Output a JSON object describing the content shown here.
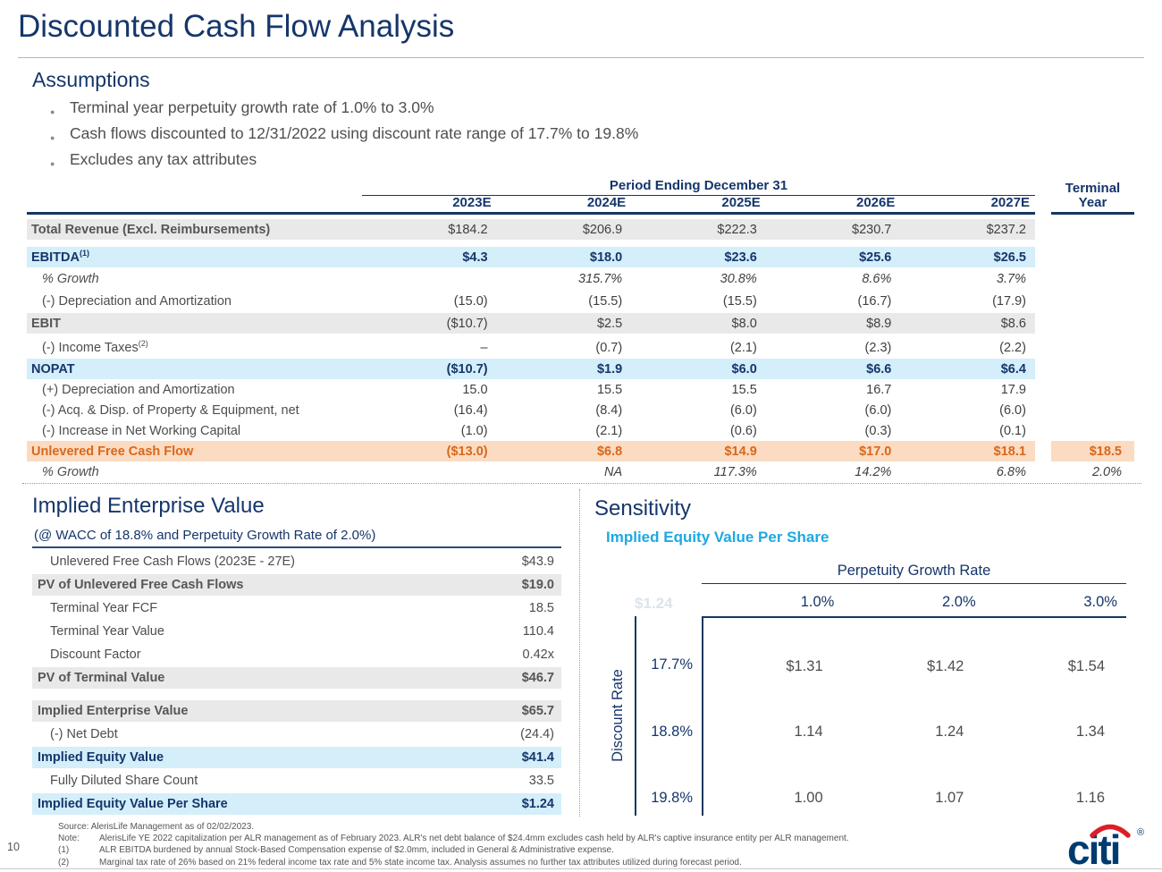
{
  "slide": {
    "title": "Discounted Cash Flow Analysis",
    "page_number": "10",
    "logo_text": "citi"
  },
  "assumptions": {
    "heading": "Assumptions",
    "bullets": [
      "Terminal year perpetuity growth rate of 1.0% to 3.0%",
      "Cash flows discounted to 12/31/2022 using discount rate range of 17.7% to 19.8%",
      "Excludes any tax attributes"
    ]
  },
  "dcf_table": {
    "group_header": "Period Ending December 31",
    "terminal_header_line1": "Terminal",
    "terminal_header_line2": "Year",
    "columns": [
      "2023E",
      "2024E",
      "2025E",
      "2026E",
      "2027E"
    ],
    "rows": [
      {
        "label": "Total Revenue (Excl. Reimbursements)",
        "sup": "",
        "style": "grey",
        "values": [
          "$184.2",
          "$206.9",
          "$222.3",
          "$230.7",
          "$237.2"
        ],
        "terminal": ""
      },
      {
        "label": "EBITDA",
        "sup": "(1)",
        "style": "blue",
        "values": [
          "$4.3",
          "$18.0",
          "$23.6",
          "$25.6",
          "$26.5"
        ],
        "terminal": ""
      },
      {
        "label": "% Growth",
        "sup": "",
        "style": "growth",
        "values": [
          "",
          "315.7%",
          "30.8%",
          "8.6%",
          "3.7%"
        ],
        "terminal": ""
      },
      {
        "label": "(-) Depreciation and Amortization",
        "sup": "",
        "style": "indent",
        "values": [
          "(15.0)",
          "(15.5)",
          "(15.5)",
          "(16.7)",
          "(17.9)"
        ],
        "terminal": ""
      },
      {
        "label": "EBIT",
        "sup": "",
        "style": "grey",
        "values": [
          "($10.7)",
          "$2.5",
          "$8.0",
          "$8.9",
          "$8.6"
        ],
        "terminal": ""
      },
      {
        "label": "(-) Income Taxes",
        "sup": "(2)",
        "style": "indent",
        "values": [
          "–",
          "(0.7)",
          "(2.1)",
          "(2.3)",
          "(2.2)"
        ],
        "terminal": ""
      },
      {
        "label": "NOPAT",
        "sup": "",
        "style": "blue",
        "values": [
          "($10.7)",
          "$1.9",
          "$6.0",
          "$6.6",
          "$6.4"
        ],
        "terminal": ""
      },
      {
        "label": "(+) Depreciation and Amortization",
        "sup": "",
        "style": "indent",
        "values": [
          "15.0",
          "15.5",
          "15.5",
          "16.7",
          "17.9"
        ],
        "terminal": ""
      },
      {
        "label": "(-) Acq. & Disp. of Property & Equipment, net",
        "sup": "",
        "style": "indent",
        "values": [
          "(16.4)",
          "(8.4)",
          "(6.0)",
          "(6.0)",
          "(6.0)"
        ],
        "terminal": ""
      },
      {
        "label": "(-) Increase in Net Working Capital",
        "sup": "",
        "style": "indent",
        "values": [
          "(1.0)",
          "(2.1)",
          "(0.6)",
          "(0.3)",
          "(0.1)"
        ],
        "terminal": ""
      },
      {
        "label": "Unlevered Free Cash Flow",
        "sup": "",
        "style": "peach",
        "values": [
          "($13.0)",
          "$6.8",
          "$14.9",
          "$17.0",
          "$18.1"
        ],
        "terminal": "$18.5"
      },
      {
        "label": "% Growth",
        "sup": "",
        "style": "growth",
        "values": [
          "",
          "NA",
          "117.3%",
          "14.2%",
          "6.8%"
        ],
        "terminal": "2.0%"
      }
    ]
  },
  "implied_ev": {
    "heading": "Implied Enterprise Value",
    "subtitle": "(@ WACC of 18.8% and Perpetuity Growth Rate of 2.0%)",
    "rows": [
      {
        "label": "Unlevered Free Cash Flows (2023E - 27E)",
        "value": "$43.9",
        "style": "indent"
      },
      {
        "label": "PV of Unlevered Free Cash Flows",
        "value": "$19.0",
        "style": "grey"
      },
      {
        "label": "Terminal Year FCF",
        "value": "18.5",
        "style": "indent"
      },
      {
        "label": "Terminal Year Value",
        "value": "110.4",
        "style": "indent"
      },
      {
        "label": "Discount Factor",
        "value": "0.42x",
        "style": "indent"
      },
      {
        "label": "PV of Terminal Value",
        "value": "$46.7",
        "style": "grey"
      },
      {
        "label": "",
        "value": "",
        "style": "spacer"
      },
      {
        "label": "Implied Enterprise Value",
        "value": "$65.7",
        "style": "grey"
      },
      {
        "label": "(-) Net Debt",
        "value": "(24.4)",
        "style": "indent"
      },
      {
        "label": "Implied Equity Value",
        "value": "$41.4",
        "style": "blue"
      },
      {
        "label": "Fully Diluted Share Count",
        "value": "33.5",
        "style": "indent"
      },
      {
        "label": "Implied Equity Value Per Share",
        "value": "$1.24",
        "style": "blue"
      }
    ]
  },
  "sensitivity": {
    "heading": "Sensitivity",
    "subheading": "Implied Equity Value Per Share",
    "col_axis_label": "Perpetuity Growth Rate",
    "row_axis_label": "Discount Rate",
    "ghost_value": "$1.24",
    "columns": [
      "1.0%",
      "2.0%",
      "3.0%"
    ],
    "rows": [
      {
        "label": "17.7%",
        "values": [
          "$1.31",
          "$1.42",
          "$1.54"
        ]
      },
      {
        "label": "18.8%",
        "values": [
          "1.14",
          "1.24",
          "1.34"
        ]
      },
      {
        "label": "19.8%",
        "values": [
          "1.00",
          "1.07",
          "1.16"
        ]
      }
    ]
  },
  "footer": {
    "source": "Source: AlerisLife Management as of 02/02/2023.",
    "note_label": "Note:",
    "note": "AlerisLife YE 2022 capitalization per ALR management as of February 2023. ALR's net debt balance of $24.4mm excludes cash held by ALR's captive insurance entity per ALR management.",
    "fn1_label": "(1)",
    "fn1": "ALR EBITDA burdened by annual Stock-Based Compensation expense of $2.0mm, included in General & Administrative expense.",
    "fn2_label": "(2)",
    "fn2": "Marginal tax rate of 26% based on 21% federal income tax rate and 5% state income tax. Analysis assumes no further tax attributes utilized during forecast period."
  },
  "colors": {
    "navy": "#15366b",
    "cyan": "#1da9e2",
    "orange": "#d9671c",
    "band_grey": "#e9e9e9",
    "band_blue": "#d4eefa",
    "band_peach": "#fbdcc2",
    "citi_blue": "#003b70",
    "citi_red": "#dc1f26"
  }
}
